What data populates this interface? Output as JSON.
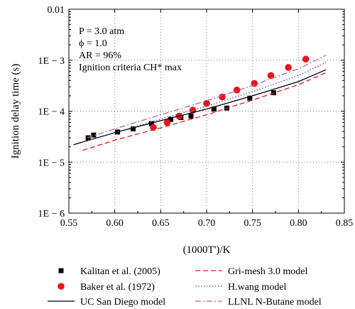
{
  "chart_data": {
    "type": "scatter",
    "xlabel": "(1000T')/K",
    "ylabel": "Ignition delay time (s)",
    "xlim": [
      0.55,
      0.85
    ],
    "ylim_log10": [
      -6,
      -2
    ],
    "yscale": "log",
    "grid": true,
    "legend_placement": "below",
    "x_ticks": [
      0.55,
      0.6,
      0.65,
      0.7,
      0.75,
      0.8,
      0.85
    ],
    "x_tick_labels": [
      "0.55",
      "0.60",
      "0.65",
      "0.70",
      "0.75",
      "0.80",
      "0.85"
    ],
    "y_ticks_log10": [
      -6,
      -5,
      -4,
      -3,
      -2
    ],
    "y_tick_labels": [
      "1E − 6",
      "1E − 5",
      "1E − 4",
      "1E − 3",
      "0.01"
    ],
    "annotations": [
      "P = 3.0 atm",
      "ϕ = 1.0",
      "AR = 96%",
      "Ignition criteria CH* max"
    ],
    "series": [
      {
        "name": "Kalitan et al. (2005)",
        "kind": "markers",
        "marker": "square",
        "color": "#000000",
        "x": [
          0.571,
          0.577,
          0.603,
          0.62,
          0.64,
          0.661,
          0.672,
          0.683,
          0.708,
          0.722,
          0.747,
          0.773
        ],
        "y": [
          3e-05,
          3.4e-05,
          3.9e-05,
          4.5e-05,
          5.7e-05,
          6.9e-05,
          7.5e-05,
          8e-05,
          0.00011,
          0.000115,
          0.00018,
          0.00023
        ]
      },
      {
        "name": "Baker et al. (1972)",
        "kind": "markers",
        "marker": "circle",
        "color": "#e8141b",
        "x": [
          0.642,
          0.657,
          0.67,
          0.685,
          0.7,
          0.717,
          0.733,
          0.752,
          0.77,
          0.789,
          0.808
        ],
        "y": [
          4.8e-05,
          6e-05,
          8e-05,
          0.000105,
          0.000142,
          0.00019,
          0.00026,
          0.00035,
          0.0005,
          0.00072,
          0.00105
        ]
      },
      {
        "name": "UC San Diego model",
        "kind": "line",
        "dash": "solid",
        "color": "#000000",
        "x": [
          0.555,
          0.6,
          0.65,
          0.7,
          0.75,
          0.8,
          0.83
        ],
        "y": [
          2.2e-05,
          3.8e-05,
          6.5e-05,
          0.00011,
          0.0002,
          0.00038,
          0.00065
        ]
      },
      {
        "name": "Gri-mesh 3.0 model",
        "kind": "line",
        "dash": "dashed",
        "color": "#e8141b",
        "x": [
          0.565,
          0.6,
          0.65,
          0.7,
          0.75,
          0.8,
          0.83
        ],
        "y": [
          1.7e-05,
          2.7e-05,
          4.7e-05,
          8.5e-05,
          0.000165,
          0.00033,
          0.00057
        ]
      },
      {
        "name": "H.wang model",
        "kind": "line",
        "dash": "dotted",
        "color": "#4a4a9a",
        "x": [
          0.565,
          0.6,
          0.65,
          0.7,
          0.75,
          0.8,
          0.83
        ],
        "y": [
          2.5e-05,
          3.8e-05,
          7e-05,
          0.000125,
          0.00024,
          0.0005,
          0.0009
        ]
      },
      {
        "name": "LLNL N-Butane model",
        "kind": "line",
        "dash": "dashdot",
        "color": "#c060a0",
        "x": [
          0.57,
          0.6,
          0.65,
          0.7,
          0.75,
          0.8,
          0.83
        ],
        "y": [
          3e-05,
          4.5e-05,
          8.5e-05,
          0.00016,
          0.00032,
          0.00068,
          0.00125
        ]
      }
    ]
  }
}
